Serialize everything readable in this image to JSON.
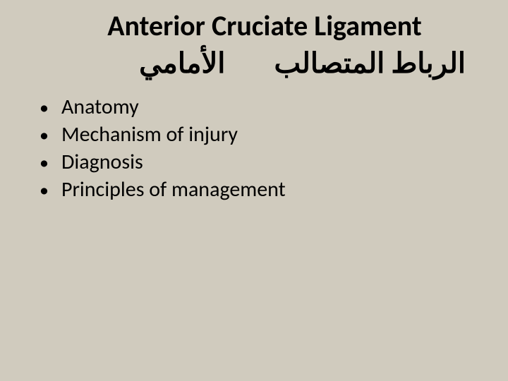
{
  "slide": {
    "title_en": "Anterior Cruciate Ligament",
    "title_ar_part1": "الرباط المتصالب",
    "title_ar_part2": "الأمامي",
    "bullets": [
      "Anatomy",
      "Mechanism of injury",
      "Diagnosis",
      "Principles of management"
    ]
  },
  "style": {
    "background_color": "#d0cbbe",
    "text_color": "#000000",
    "title_fontsize": 40,
    "bullet_fontsize": 30,
    "font_family": "Calibri, Arial, sans-serif"
  }
}
